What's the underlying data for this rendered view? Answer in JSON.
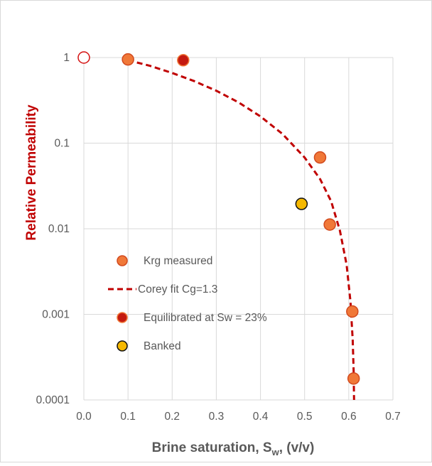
{
  "chart_data": {
    "type": "scatter",
    "title": "",
    "xlabel": "Brine saturation, S",
    "xlabel_sub": "w",
    "xlabel_tail": ", (v/v)",
    "ylabel": "Relative Permeability",
    "xlim": [
      0,
      0.7
    ],
    "ylim": [
      0.0001,
      1
    ],
    "yscale": "log",
    "grid": true,
    "legend_position": "lower-left",
    "x_ticks": [
      "0.0",
      "0.1",
      "0.2",
      "0.3",
      "0.4",
      "0.5",
      "0.6",
      "0.7"
    ],
    "y_ticks": [
      "1",
      "0.1",
      "0.01",
      "0.001",
      "0.0001"
    ],
    "series": [
      {
        "name": "Krg measured",
        "marker": "circle",
        "fill": "#f07838",
        "stroke": "#d24a1e",
        "points": [
          {
            "x": 0.1,
            "y": 0.95
          },
          {
            "x": 0.535,
            "y": 0.068
          },
          {
            "x": 0.557,
            "y": 0.0112
          },
          {
            "x": 0.608,
            "y": 0.00108
          },
          {
            "x": 0.611,
            "y": 0.000178
          }
        ]
      },
      {
        "name": "Corey fit Cg=1.3",
        "line": "dashed",
        "stroke": "#c00000",
        "points": [
          {
            "x": 0.1,
            "y": 0.93
          },
          {
            "x": 0.15,
            "y": 0.8
          },
          {
            "x": 0.2,
            "y": 0.66
          },
          {
            "x": 0.25,
            "y": 0.53
          },
          {
            "x": 0.3,
            "y": 0.41
          },
          {
            "x": 0.35,
            "y": 0.3
          },
          {
            "x": 0.4,
            "y": 0.205
          },
          {
            "x": 0.45,
            "y": 0.128
          },
          {
            "x": 0.5,
            "y": 0.068
          },
          {
            "x": 0.535,
            "y": 0.038
          },
          {
            "x": 0.56,
            "y": 0.021
          },
          {
            "x": 0.58,
            "y": 0.0095
          },
          {
            "x": 0.595,
            "y": 0.0038
          },
          {
            "x": 0.604,
            "y": 0.0014
          },
          {
            "x": 0.609,
            "y": 0.0005
          },
          {
            "x": 0.611,
            "y": 0.00022
          },
          {
            "x": 0.612,
            "y": 0.0001
          }
        ]
      },
      {
        "name": "Equilibrated at Sw = 23%",
        "marker": "circle",
        "fill": "#c41a10",
        "stroke": "#f07838",
        "points": [
          {
            "x": 0.225,
            "y": 0.93
          }
        ]
      },
      {
        "name": "Banked",
        "marker": "circle",
        "fill": "#f5b800",
        "stroke": "#111111",
        "points": [
          {
            "x": 0.493,
            "y": 0.0195
          }
        ]
      },
      {
        "name": "",
        "marker": "circle-open",
        "fill": "#ffffff",
        "stroke": "#d41010",
        "points": [
          {
            "x": 0.0,
            "y": 1
          }
        ]
      }
    ]
  }
}
